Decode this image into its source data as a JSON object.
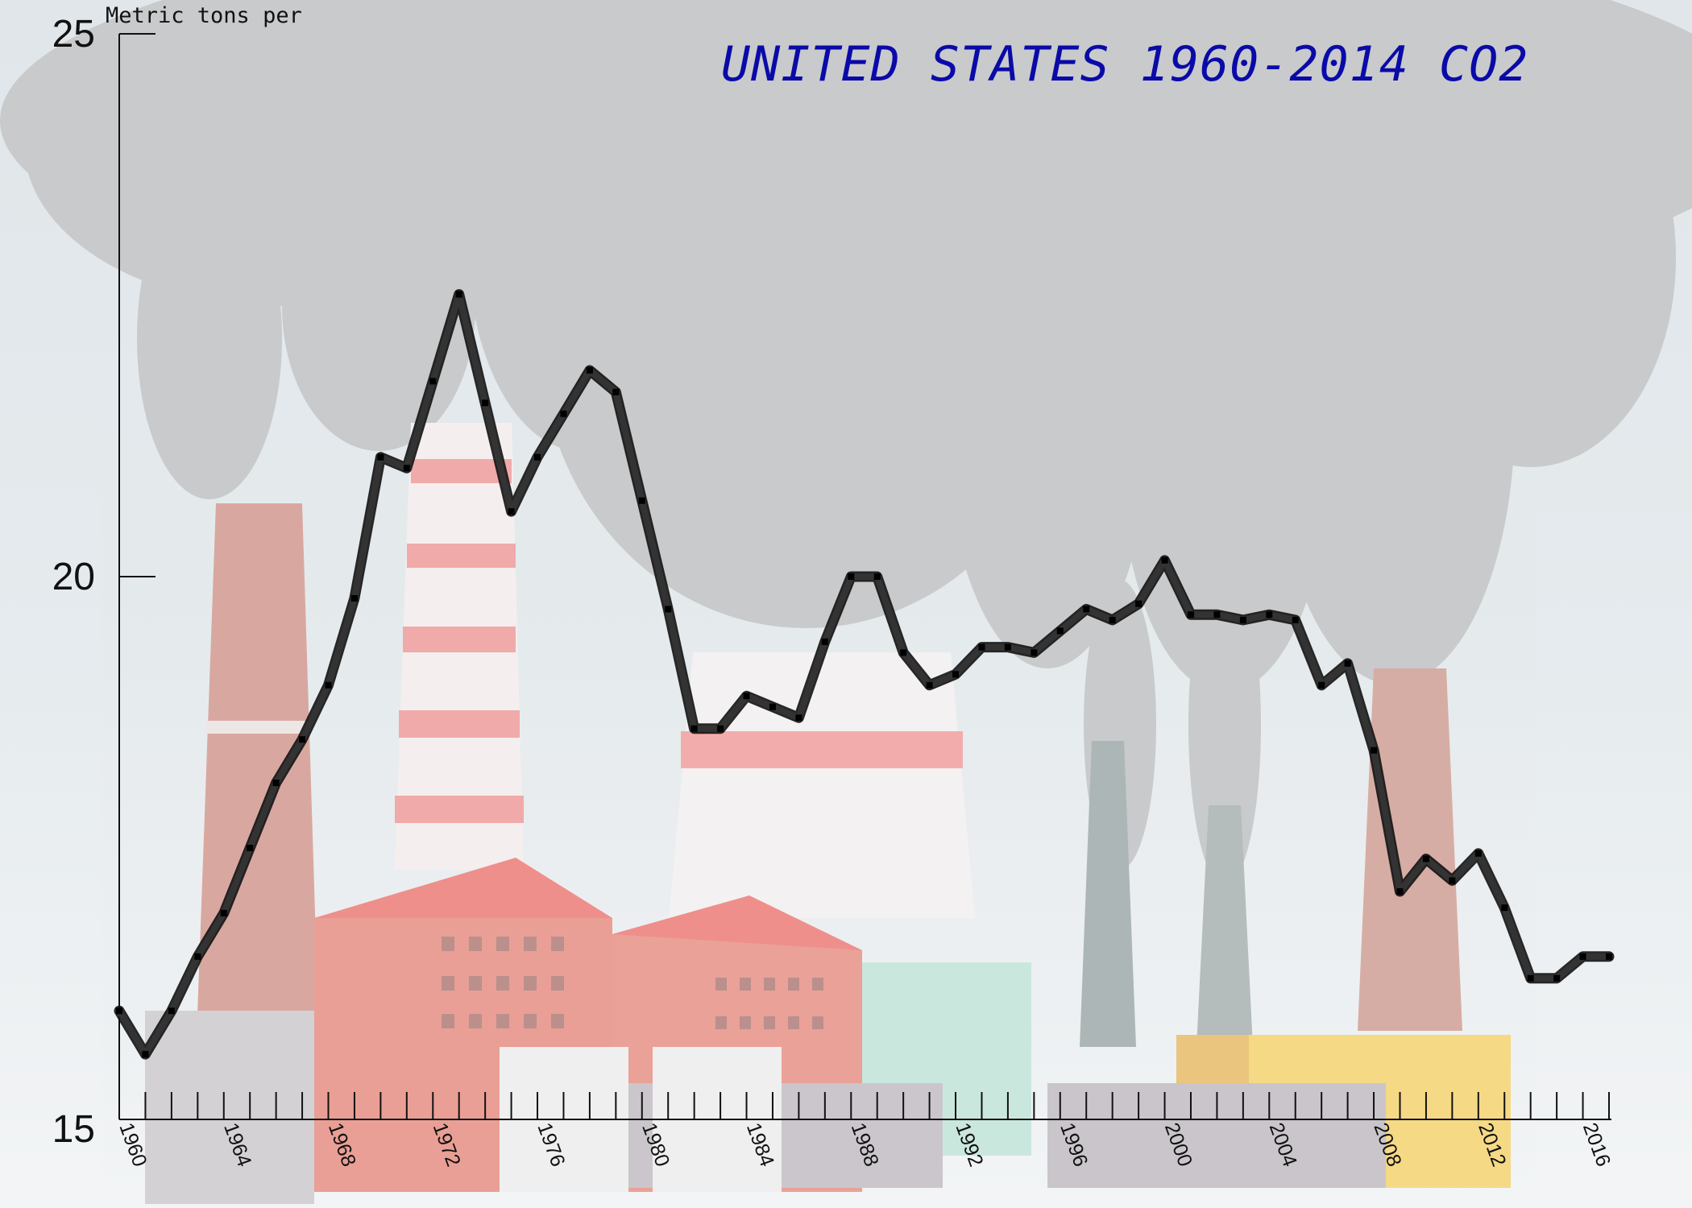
{
  "chart_data": {
    "type": "line",
    "title": "UNITED STATES 1960-2014 CO2",
    "ylabel": "Metric tons per",
    "xlabel": "",
    "xlim": [
      1960,
      2017
    ],
    "ylim": [
      15,
      25
    ],
    "yticks": [
      15,
      20,
      25
    ],
    "xtick_labels": [
      "1960",
      "1964",
      "1968",
      "1972",
      "1976",
      "1980",
      "1984",
      "1988",
      "1992",
      "1996",
      "2000",
      "2004",
      "2008",
      "2012",
      "2016"
    ],
    "grid": false,
    "legend": "none",
    "line_color": "#333333",
    "title_color": "#0a0aa8",
    "x": [
      1960,
      1961,
      1962,
      1963,
      1964,
      1965,
      1966,
      1967,
      1968,
      1969,
      1970,
      1971,
      1972,
      1973,
      1974,
      1975,
      1976,
      1977,
      1978,
      1979,
      1980,
      1981,
      1982,
      1983,
      1984,
      1985,
      1986,
      1987,
      1988,
      1989,
      1990,
      1991,
      1992,
      1993,
      1994,
      1995,
      1996,
      1997,
      1998,
      1999,
      2000,
      2001,
      2002,
      2003,
      2004,
      2005,
      2006,
      2007,
      2008,
      2009,
      2010,
      2011,
      2012,
      2013,
      2014,
      2015,
      2016,
      2017
    ],
    "values": [
      16.0,
      15.6,
      16.0,
      16.5,
      16.9,
      17.5,
      18.1,
      18.5,
      19.0,
      19.8,
      21.1,
      21.0,
      21.8,
      22.6,
      21.6,
      20.6,
      21.1,
      21.5,
      21.9,
      21.7,
      20.7,
      19.7,
      18.6,
      18.6,
      18.9,
      18.8,
      18.7,
      19.4,
      20.0,
      20.0,
      19.3,
      19.0,
      19.1,
      19.35,
      19.35,
      19.3,
      19.5,
      19.7,
      19.6,
      19.75,
      20.15,
      19.65,
      19.65,
      19.6,
      19.65,
      19.6,
      19.0,
      19.2,
      18.4,
      17.1,
      17.4,
      17.2,
      17.45,
      16.95,
      16.3,
      16.3,
      16.5,
      16.5
    ]
  },
  "colors": {
    "smoke": "#c7c8ca",
    "sky": "#e6ecef"
  }
}
